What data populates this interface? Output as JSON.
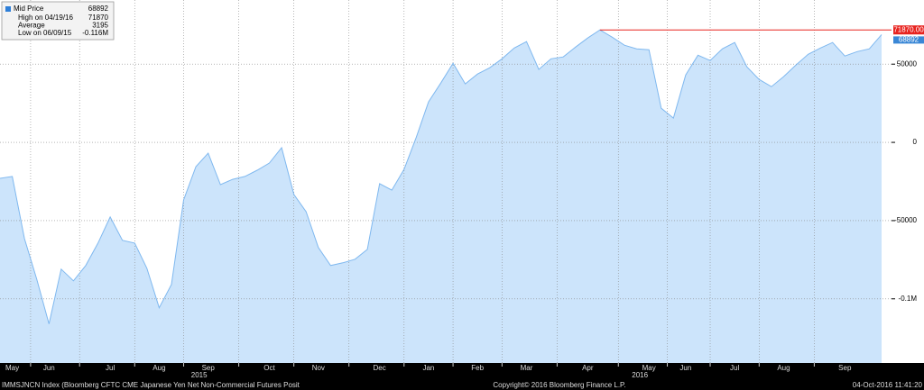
{
  "chart_data": {
    "type": "area",
    "series": [
      {
        "name": "Mid Price",
        "color": "#7fb8ef",
        "fill": "#cce4fb",
        "values": [
          -23000,
          -21800,
          -61500,
          -87400,
          -116000,
          -81000,
          -88500,
          -78700,
          -64400,
          -47700,
          -62600,
          -64400,
          -80500,
          -105700,
          -90800,
          -36800,
          -15500,
          -6900,
          -27000,
          -23600,
          -21800,
          -17800,
          -13200,
          -3400,
          -33300,
          -44300,
          -67200,
          -78700,
          -77000,
          -74700,
          -68400,
          -26400,
          -30500,
          -17200,
          3400,
          25900,
          37900,
          50600,
          37400,
          43700,
          47700,
          53400,
          60300,
          64400,
          46600,
          53400,
          54600,
          60900,
          66700,
          71870,
          67200,
          62100,
          59800,
          59200,
          21800,
          15500,
          43100,
          55700,
          52300,
          59800,
          63800,
          48300,
          40200,
          35600,
          42000,
          49400,
          56300,
          60300,
          63800,
          55200,
          58000,
          59800,
          68892
        ]
      }
    ],
    "categories": [
      null,
      "May",
      null,
      null,
      "Jun",
      null,
      null,
      null,
      null,
      "Jul",
      null,
      null,
      null,
      "Aug",
      null,
      null,
      null,
      "Sep",
      null,
      null,
      null,
      null,
      "Oct",
      null,
      null,
      null,
      "Nov",
      null,
      null,
      null,
      null,
      "Dec",
      null,
      null,
      null,
      "Jan",
      null,
      null,
      null,
      "Feb",
      null,
      null,
      null,
      "Mar",
      null,
      null,
      null,
      null,
      "Apr",
      null,
      null,
      null,
      null,
      "May",
      null,
      null,
      "Jun",
      null,
      null,
      null,
      "Jul",
      null,
      null,
      null,
      "Aug",
      null,
      null,
      null,
      null,
      "Sep",
      null,
      null,
      null
    ],
    "years": [
      "2015",
      "2016"
    ],
    "ylim": [
      -141000,
      91000
    ],
    "yticks": [
      50000,
      0,
      -50000,
      {
        "value": -100000,
        "label": "-0.1M"
      }
    ],
    "grid": true,
    "high_line": {
      "value": 71870,
      "label": "71870.00",
      "color": "#e8231f"
    },
    "stats": [
      {
        "label": "High on 04/19/16",
        "value": 71870
      },
      {
        "label": "Average",
        "value": 3195
      },
      {
        "label": "Low on 06/09/15",
        "value": -116000,
        "value_label": "-0.116M"
      }
    ],
    "footer": {
      "left": "IMMSJNCN Index (Bloomberg CFTC CME Japanese Yen Net Non-Commercial Futures Posit",
      "center": "Copyright© 2016 Bloomberg Finance L.P.",
      "right": "04-Oct-2016 11:41:20"
    }
  }
}
